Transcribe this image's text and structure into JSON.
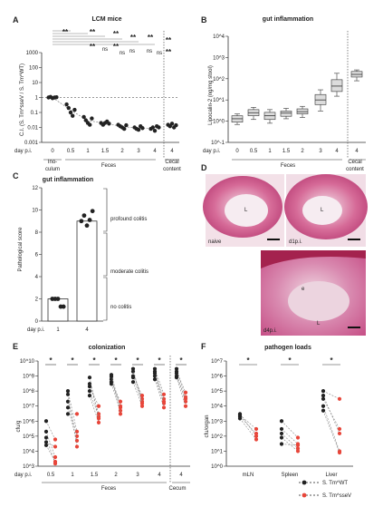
{
  "panels": {
    "A": {
      "letter": "A",
      "title": "LCM mice",
      "ylabel": "C.I. (S. Tm^sseV / S. Tm^WT)",
      "yticks": [
        "1000",
        "100",
        "10",
        "1",
        "0.1",
        "0.01",
        "0.001"
      ],
      "xprefix": "day p.i.",
      "xticks": [
        "0",
        "0.5",
        "1",
        "1.5",
        "2",
        "3",
        "4",
        "4"
      ],
      "groups": [
        "Ino-",
        "culum",
        "Feces",
        "Cecal",
        "content"
      ],
      "sig": [
        "**",
        "**",
        "**",
        "**",
        "**",
        "**",
        "**",
        "**",
        "ns",
        "**",
        "ns",
        "ns",
        "ns",
        "ns"
      ]
    },
    "B": {
      "letter": "B",
      "title": "gut inflammation",
      "ylabel": "Lipocalin-2 (ng/mg stool)",
      "yticks": [
        "10^4",
        "10^3",
        "10^2",
        "10^1",
        "10^0",
        "10^-1"
      ],
      "xprefix": "day p.i.",
      "xticks": [
        "0",
        "0.5",
        "1",
        "1.5",
        "2",
        "3",
        "4",
        "4"
      ],
      "groups": [
        "Feces",
        "Cecal",
        "content"
      ]
    },
    "C": {
      "letter": "C",
      "title": "gut inflammation",
      "ylabel": "Pathological score",
      "yticks": [
        "12",
        "10",
        "8",
        "6",
        "4",
        "2",
        "0"
      ],
      "xprefix": "day p.i.",
      "xticks": [
        "1",
        "4"
      ],
      "brackets": [
        "profound colitis",
        "moderate colitis",
        "no colitis"
      ]
    },
    "D": {
      "letter": "D",
      "labels": [
        "naive",
        "d1p.i.",
        "d4p.i."
      ],
      "lumen": [
        "L",
        "L",
        "L",
        "e"
      ]
    },
    "E": {
      "letter": "E",
      "title": "colonization",
      "ylabel": "cfu/g",
      "yticks": [
        "10^10",
        "10^9",
        "10^8",
        "10^7",
        "10^6",
        "10^5",
        "10^4",
        "10^3"
      ],
      "xprefix": "day p.i.",
      "xticks": [
        "0.5",
        "1",
        "1.5",
        "2",
        "3",
        "4",
        "4"
      ],
      "groups": [
        "Feces",
        "Cecum"
      ],
      "sig": [
        "*",
        "*",
        "*",
        "*",
        "*",
        "*",
        "*"
      ]
    },
    "F": {
      "letter": "F",
      "title": "pathogen loads",
      "ylabel": "cfu/organ",
      "yticks": [
        "10^7",
        "10^6",
        "10^5",
        "10^4",
        "10^3",
        "10^2",
        "10^1",
        "10^0"
      ],
      "xticks": [
        "mLN",
        "Spleen",
        "Liver"
      ],
      "sig": [
        "*",
        "*",
        "*"
      ]
    }
  },
  "legend": [
    {
      "label": "S. Tm^WT",
      "color": "#222222"
    },
    {
      "label": "S. Tm^sseV",
      "color": "#e8463a"
    }
  ],
  "colors": {
    "black": "#222222",
    "red": "#e8463a",
    "pink": "#cc3f7c",
    "box": "#dcdcdc"
  },
  "chart_data": [
    {
      "type": "scatter",
      "panel": "A",
      "title": "LCM mice",
      "ylabel": "C.I. (S. Tm^sseV / S. Tm^WT)",
      "yscale": "log",
      "ylim": [
        0.001,
        1000
      ],
      "categories": [
        "0",
        "0.5",
        "1",
        "1.5",
        "2",
        "3",
        "4",
        "4"
      ],
      "series": [
        {
          "values": [
            [
              1,
              1.1,
              0.9,
              1,
              1.05
            ],
            [
              0.35,
              0.2,
              0.1,
              0.06,
              0.15
            ],
            [
              0.05,
              0.03,
              0.02,
              0.015,
              0.04
            ],
            [
              0.02,
              0.015,
              0.02,
              0.025,
              0.018
            ],
            [
              0.015,
              0.012,
              0.01,
              0.008,
              0.014
            ],
            [
              0.01,
              0.008,
              0.007,
              0.012,
              0.009
            ],
            [
              0.008,
              0.01,
              0.006,
              0.012,
              0.01
            ],
            [
              0.015,
              0.012,
              0.018,
              0.01,
              0.014
            ]
          ]
        }
      ]
    },
    {
      "type": "box",
      "panel": "B",
      "title": "gut inflammation",
      "ylabel": "Lipocalin-2 (ng/mg stool)",
      "yscale": "log",
      "ylim": [
        0.1,
        10000
      ],
      "categories": [
        "0",
        "0.5",
        "1",
        "1.5",
        "2",
        "3",
        "4",
        "4"
      ],
      "boxes": [
        [
          0.7,
          0.9,
          1.3,
          1.8,
          2.2
        ],
        [
          1.2,
          1.8,
          2.5,
          3.5,
          4.5
        ],
        [
          0.8,
          1.2,
          1.8,
          2.6,
          3.5
        ],
        [
          1.3,
          1.7,
          2.4,
          3.0,
          4.0
        ],
        [
          1.5,
          2.2,
          2.8,
          3.8,
          5.0
        ],
        [
          3,
          6,
          10,
          18,
          30
        ],
        [
          15,
          25,
          45,
          90,
          180
        ],
        [
          80,
          120,
          160,
          220,
          260
        ]
      ]
    },
    {
      "type": "bar",
      "panel": "C",
      "title": "gut inflammation",
      "ylabel": "Pathological score",
      "ylim": [
        0,
        12
      ],
      "categories": [
        "1",
        "4"
      ],
      "values": [
        2,
        9
      ],
      "points": [
        [
          2,
          2,
          2,
          1.3,
          1.3
        ],
        [
          9,
          9.5,
          8.6,
          9.1,
          9.9
        ]
      ]
    },
    {
      "type": "scatter",
      "panel": "E",
      "title": "colonization",
      "ylabel": "cfu/g",
      "yscale": "log",
      "ylim": [
        1000,
        10000000000
      ],
      "categories": [
        "0.5",
        "1",
        "1.5",
        "2",
        "3",
        "4",
        "4"
      ],
      "series": [
        {
          "name": "S. Tm^WT",
          "values": [
            [
              200000,
              80000,
              40000,
              25000,
              1000000
            ],
            [
              100000000,
              20000000,
              8000000,
              3000000,
              60000000
            ],
            [
              300000000,
              100000000,
              50000000,
              800000000,
              200000000
            ],
            [
              600000000,
              300000000,
              900000000,
              400000000,
              1200000000
            ],
            [
              2000000000,
              800000000,
              400000000,
              1000000000,
              3000000000
            ],
            [
              2000000000,
              1000000000,
              600000000,
              3000000000,
              1500000000
            ],
            [
              3000000000,
              1500000000,
              800000000,
              2000000000,
              1000000000
            ]
          ]
        },
        {
          "name": "S. Tm^sseV",
          "values": [
            [
              4000,
              1500,
              20000,
              2000,
              60000
            ],
            [
              200000,
              100000,
              50000,
              3000000,
              20000
            ],
            [
              3000000,
              2000000,
              800000,
              1500000,
              10000000
            ],
            [
              10000000,
              5000000,
              3000000,
              20000000,
              8000000
            ],
            [
              30000000,
              20000000,
              10000000,
              50000000,
              15000000
            ],
            [
              30000000,
              15000000,
              8000000,
              60000000,
              20000000
            ],
            [
              40000000,
              20000000,
              10000000,
              80000000,
              30000000
            ]
          ]
        }
      ]
    },
    {
      "type": "scatter",
      "panel": "F",
      "title": "pathogen loads",
      "ylabel": "cfu/organ",
      "yscale": "log",
      "ylim": [
        1,
        10000000
      ],
      "categories": [
        "mLN",
        "Spleen",
        "Liver"
      ],
      "series": [
        {
          "name": "S. Tm^WT",
          "values": [
            [
              2500,
              3000,
              1500,
              2000
            ],
            [
              1000,
              300,
              150,
              80,
              30
            ],
            [
              100000,
              50000,
              30000,
              10000,
              5000
            ]
          ]
        },
        {
          "name": "S. Tm^sseV",
          "values": [
            [
              300,
              100,
              60,
              150
            ],
            [
              80,
              30,
              15,
              10,
              25
            ],
            [
              30000,
              150,
              300,
              10,
              8
            ]
          ]
        }
      ]
    }
  ]
}
